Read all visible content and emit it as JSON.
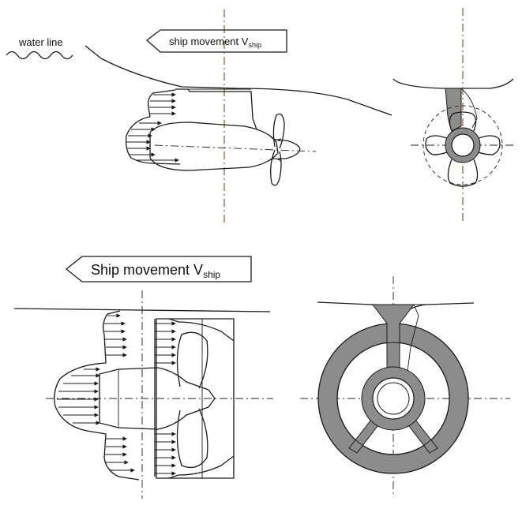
{
  "top_arrow": {
    "text": "ship movement V",
    "sub": "ship"
  },
  "bottom_arrow": {
    "text": "Ship movement V",
    "sub": "ship"
  },
  "water_label": "water line",
  "colors": {
    "centerline": "#8b5a2b",
    "fill": "#8c8c8c",
    "ink": "#1a1a1a"
  }
}
